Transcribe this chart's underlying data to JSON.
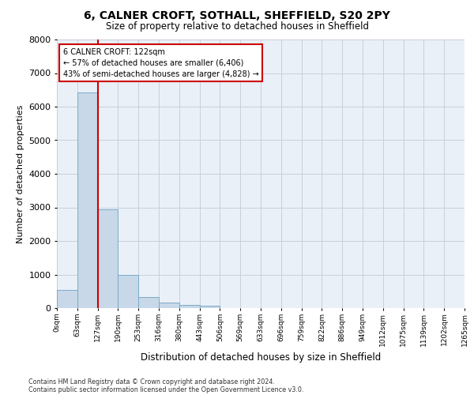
{
  "title_line1": "6, CALNER CROFT, SOTHALL, SHEFFIELD, S20 2PY",
  "title_line2": "Size of property relative to detached houses in Sheffield",
  "xlabel": "Distribution of detached houses by size in Sheffield",
  "ylabel": "Number of detached properties",
  "bin_labels": [
    "0sqm",
    "63sqm",
    "127sqm",
    "190sqm",
    "253sqm",
    "316sqm",
    "380sqm",
    "443sqm",
    "506sqm",
    "569sqm",
    "633sqm",
    "696sqm",
    "759sqm",
    "822sqm",
    "886sqm",
    "949sqm",
    "1012sqm",
    "1075sqm",
    "1139sqm",
    "1202sqm",
    "1265sqm"
  ],
  "bar_heights": [
    540,
    6430,
    2930,
    980,
    340,
    160,
    100,
    65,
    0,
    0,
    0,
    0,
    0,
    0,
    0,
    0,
    0,
    0,
    0,
    0
  ],
  "bar_color": "#c8d8e8",
  "bar_edge_color": "#7aaac8",
  "property_line_x": 2,
  "vline_color": "#cc0000",
  "annotation_text": "6 CALNER CROFT: 122sqm\n← 57% of detached houses are smaller (6,406)\n43% of semi-detached houses are larger (4,828) →",
  "annotation_box_color": "#cc0000",
  "ylim": [
    0,
    8000
  ],
  "yticks": [
    0,
    1000,
    2000,
    3000,
    4000,
    5000,
    6000,
    7000,
    8000
  ],
  "footer_line1": "Contains HM Land Registry data © Crown copyright and database right 2024.",
  "footer_line2": "Contains public sector information licensed under the Open Government Licence v3.0.",
  "background_color": "#eaf0f8",
  "plot_background": "#ffffff",
  "grid_color": "#c8d0dc"
}
